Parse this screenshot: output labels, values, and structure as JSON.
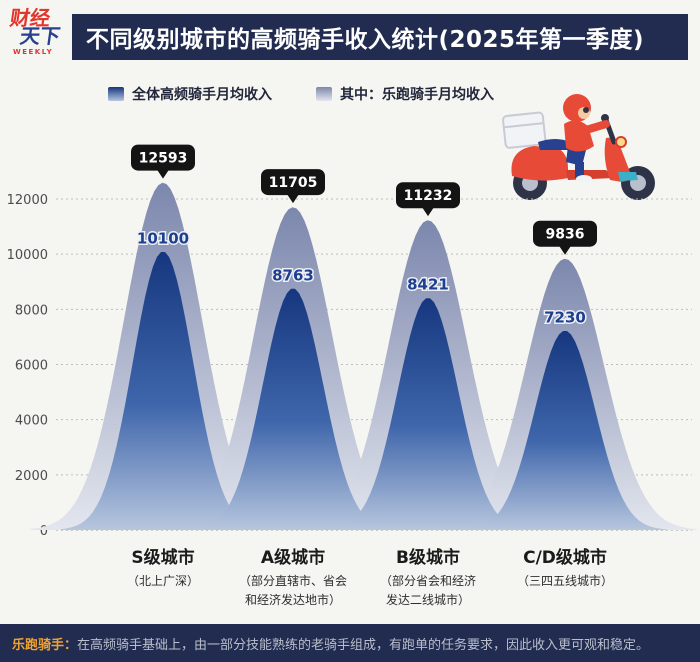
{
  "logo": {
    "line1": "财经",
    "line2": "天下",
    "weekly": "WEEKLY"
  },
  "header": {
    "title": "不同级别城市的高频骑手收入统计(2025年第一季度)"
  },
  "legend": {
    "items": [
      {
        "label": "全体高频骑手月均收入"
      },
      {
        "label": "其中：乐跑骑手月均收入"
      }
    ]
  },
  "chart_data": {
    "type": "area",
    "title": "不同级别城市的高频骑手收入统计(2025年第一季度)",
    "categories": [
      "S级城市",
      "A级城市",
      "B级城市",
      "C/D级城市"
    ],
    "series": [
      {
        "name": "其中：乐跑骑手月均收入",
        "role": "outer",
        "values": [
          12593,
          11705,
          11232,
          9836
        ]
      },
      {
        "name": "全体高频骑手月均收入",
        "role": "inner",
        "values": [
          10100,
          8763,
          8421,
          7230
        ]
      }
    ],
    "yticks": [
      0,
      2000,
      4000,
      6000,
      8000,
      10000,
      12000
    ],
    "ylim": [
      0,
      13000
    ],
    "grid": "dotted-horizontal",
    "legend_position": "top"
  },
  "categories": [
    {
      "label": "S级城市",
      "sub": "（北上广深）"
    },
    {
      "label": "A级城市",
      "sub": "（部分直辖市、省会\n和经济发达地市）"
    },
    {
      "label": "B级城市",
      "sub": "（部分省会和经济\n发达二线城市）"
    },
    {
      "label": "C/D级城市",
      "sub": "（三四五线城市）"
    }
  ],
  "footer": {
    "term": "乐跑骑手：",
    "note": "在高频骑手基础上，由一部分技能熟练的老骑手组成，有跑单的任务要求，因此收入更可观和稳定。"
  },
  "colors": {
    "navy": "#212c50",
    "curve_inner_top": "#16377f",
    "curve_inner_bottom": "#b7c6de",
    "curve_outer_top": "#7c87ad",
    "curve_outer_bottom": "#e3e6ee",
    "value_blue": "#1c3f8f",
    "bubble_black": "#141414",
    "footer_orange": "#f0a32f",
    "brand_red": "#e2352b"
  }
}
